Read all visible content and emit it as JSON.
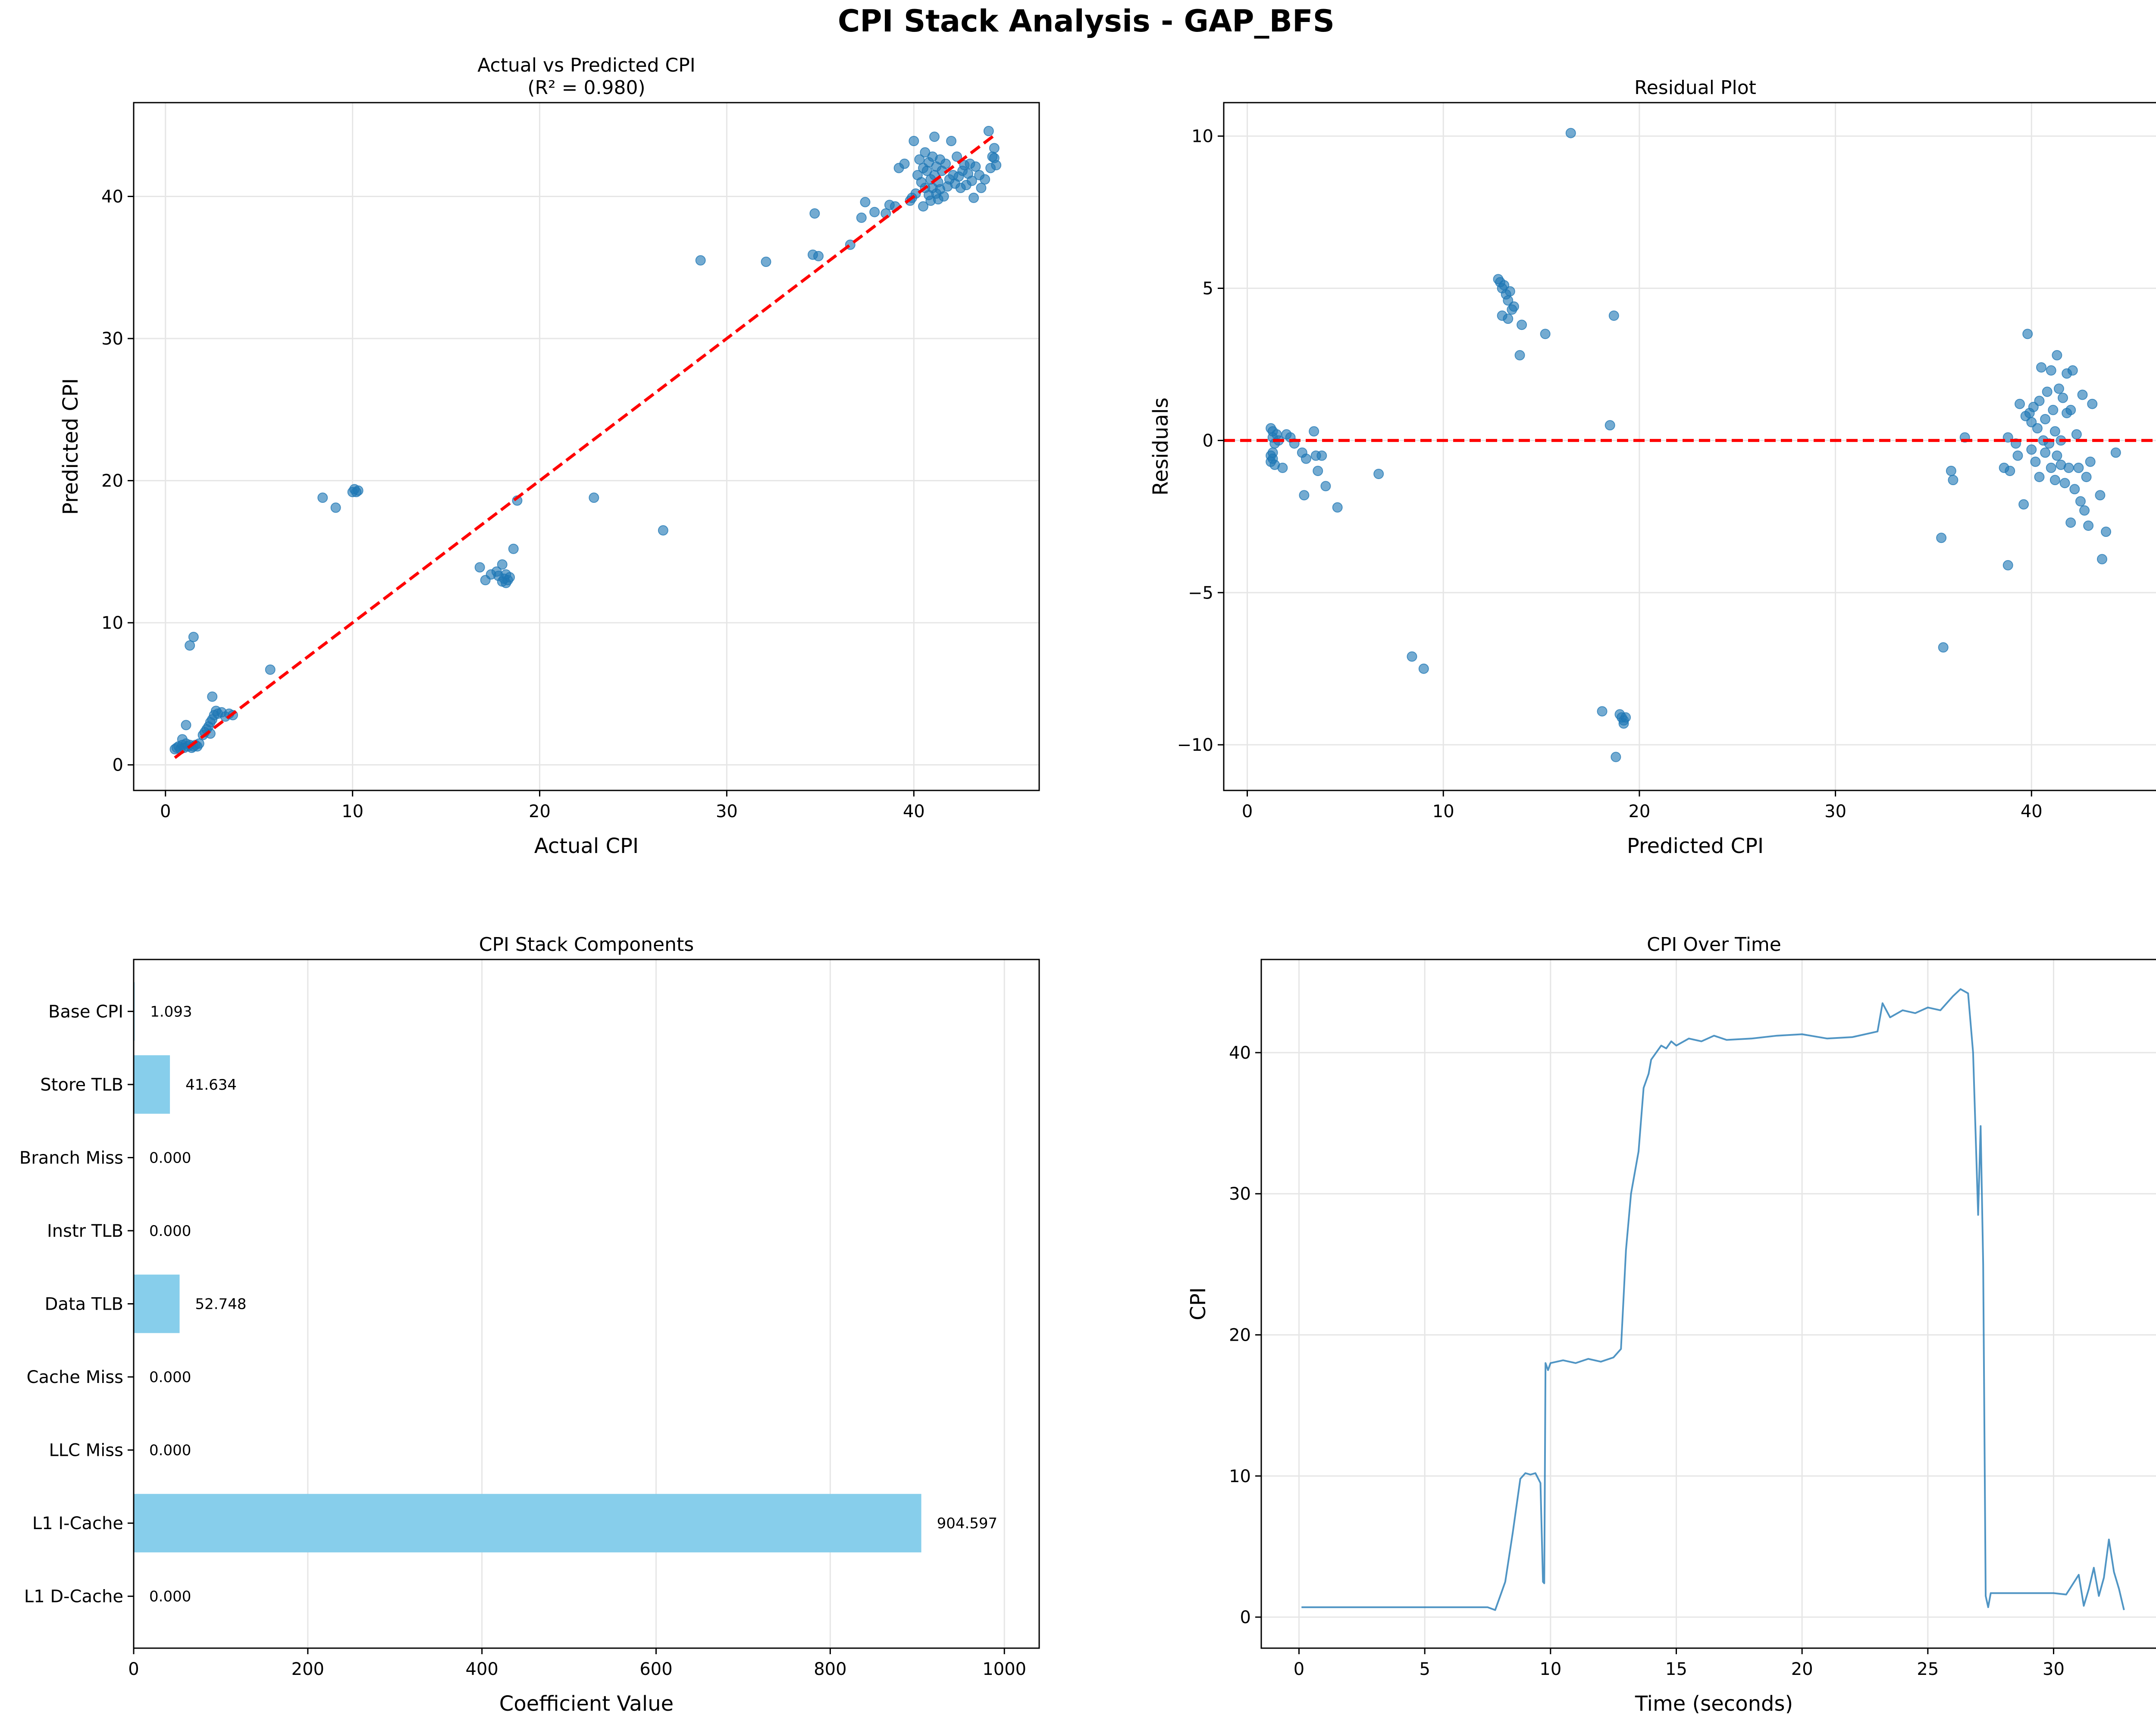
{
  "figure": {
    "suptitle": "CPI Stack Analysis - GAP_BFS"
  },
  "colors": {
    "point": "#1f77b4",
    "ref_line": "#ff0000",
    "bar": "#87ceeb",
    "timeline": "#1f77b4",
    "grid": "#e6e6e6"
  },
  "chart_data": [
    {
      "type": "scatter",
      "title": "Actual vs Predicted CPI",
      "subtitle": "(R² = 0.980)",
      "xlabel": "Actual CPI",
      "ylabel": "Predicted CPI",
      "xlim": [
        -1.7,
        46.7
      ],
      "ylim": [
        -1.8,
        46.6
      ],
      "xticks": [
        "0",
        "10",
        "20",
        "30",
        "40"
      ],
      "yticks": [
        "0",
        "10",
        "20",
        "30",
        "40"
      ],
      "grid": true,
      "reference_line": {
        "x": [
          0.5,
          44.3
        ],
        "y": [
          0.5,
          44.3
        ]
      },
      "points": [
        [
          0.5,
          1.1
        ],
        [
          0.6,
          1.2
        ],
        [
          0.7,
          1.3
        ],
        [
          0.8,
          1.1
        ],
        [
          0.9,
          1.4
        ],
        [
          1.0,
          1.2
        ],
        [
          1.1,
          1.5
        ],
        [
          1.2,
          1.3
        ],
        [
          1.3,
          1.4
        ],
        [
          1.4,
          1.2
        ],
        [
          1.5,
          1.3
        ],
        [
          1.6,
          1.4
        ],
        [
          1.7,
          1.3
        ],
        [
          1.8,
          1.5
        ],
        [
          0.9,
          1.8
        ],
        [
          1.1,
          2.8
        ],
        [
          1.3,
          8.4
        ],
        [
          1.5,
          9.0
        ],
        [
          2.0,
          2.1
        ],
        [
          2.1,
          2.3
        ],
        [
          2.2,
          2.5
        ],
        [
          2.3,
          2.7
        ],
        [
          2.4,
          3.0
        ],
        [
          2.5,
          3.2
        ],
        [
          2.6,
          3.5
        ],
        [
          2.7,
          3.8
        ],
        [
          2.5,
          4.8
        ],
        [
          2.8,
          3.6
        ],
        [
          3.0,
          3.7
        ],
        [
          3.2,
          3.4
        ],
        [
          3.4,
          3.6
        ],
        [
          3.6,
          3.5
        ],
        [
          2.4,
          2.2
        ],
        [
          5.6,
          6.7
        ],
        [
          8.4,
          18.8
        ],
        [
          9.1,
          18.1
        ],
        [
          10.0,
          19.2
        ],
        [
          10.1,
          19.4
        ],
        [
          10.2,
          19.2
        ],
        [
          10.3,
          19.3
        ],
        [
          16.8,
          13.9
        ],
        [
          17.1,
          13.0
        ],
        [
          17.4,
          13.4
        ],
        [
          17.7,
          13.6
        ],
        [
          17.8,
          13.3
        ],
        [
          18.0,
          12.9
        ],
        [
          18.1,
          13.1
        ],
        [
          18.2,
          13.4
        ],
        [
          18.0,
          14.1
        ],
        [
          18.3,
          13.0
        ],
        [
          18.4,
          13.2
        ],
        [
          18.2,
          12.8
        ],
        [
          18.6,
          15.2
        ],
        [
          18.8,
          18.6
        ],
        [
          22.9,
          18.8
        ],
        [
          26.6,
          16.5
        ],
        [
          28.6,
          35.5
        ],
        [
          32.1,
          35.4
        ],
        [
          34.6,
          35.9
        ],
        [
          34.9,
          35.8
        ],
        [
          34.7,
          38.8
        ],
        [
          36.6,
          36.6
        ],
        [
          37.2,
          38.5
        ],
        [
          37.4,
          39.6
        ],
        [
          37.9,
          38.9
        ],
        [
          38.5,
          38.8
        ],
        [
          38.7,
          39.4
        ],
        [
          39.0,
          39.3
        ],
        [
          39.2,
          42.0
        ],
        [
          39.5,
          42.3
        ],
        [
          39.8,
          39.7
        ],
        [
          39.9,
          39.9
        ],
        [
          40.0,
          43.9
        ],
        [
          40.1,
          40.2
        ],
        [
          40.2,
          41.5
        ],
        [
          40.3,
          42.6
        ],
        [
          40.4,
          41.0
        ],
        [
          40.5,
          39.3
        ],
        [
          40.5,
          42.0
        ],
        [
          40.6,
          40.6
        ],
        [
          40.6,
          43.1
        ],
        [
          40.7,
          41.8
        ],
        [
          40.8,
          40.1
        ],
        [
          40.8,
          42.4
        ],
        [
          40.9,
          41.2
        ],
        [
          40.9,
          39.7
        ],
        [
          41.0,
          42.8
        ],
        [
          41.0,
          40.6
        ],
        [
          41.1,
          41.5
        ],
        [
          41.1,
          44.2
        ],
        [
          41.2,
          40.2
        ],
        [
          41.2,
          42.1
        ],
        [
          41.3,
          41.0
        ],
        [
          41.3,
          39.8
        ],
        [
          41.4,
          42.6
        ],
        [
          41.4,
          40.5
        ],
        [
          41.5,
          41.8
        ],
        [
          41.6,
          40.0
        ],
        [
          41.7,
          42.3
        ],
        [
          41.8,
          40.7
        ],
        [
          41.9,
          41.2
        ],
        [
          42.0,
          43.9
        ],
        [
          42.1,
          41.5
        ],
        [
          42.2,
          40.9
        ],
        [
          42.3,
          42.8
        ],
        [
          42.4,
          41.4
        ],
        [
          42.5,
          40.6
        ],
        [
          42.6,
          41.8
        ],
        [
          42.7,
          42.2
        ],
        [
          42.8,
          40.8
        ],
        [
          42.9,
          41.6
        ],
        [
          43.0,
          42.3
        ],
        [
          43.1,
          41.1
        ],
        [
          43.2,
          39.9
        ],
        [
          43.3,
          42.1
        ],
        [
          43.5,
          41.5
        ],
        [
          43.6,
          40.6
        ],
        [
          43.8,
          41.2
        ],
        [
          44.0,
          44.6
        ],
        [
          44.1,
          42.0
        ],
        [
          44.2,
          42.8
        ],
        [
          44.3,
          43.4
        ],
        [
          44.4,
          42.2
        ],
        [
          44.3,
          42.7
        ]
      ]
    },
    {
      "type": "scatter",
      "title": "Residual Plot",
      "xlabel": "Predicted CPI",
      "ylabel": "Residuals",
      "xlim": [
        -1.2,
        46.9
      ],
      "ylim": [
        -11.5,
        11.1
      ],
      "xticks": [
        "0",
        "10",
        "20",
        "30",
        "40"
      ],
      "yticks": [
        "−10",
        "−5",
        "0",
        "5",
        "10"
      ],
      "grid": true,
      "reference_line": {
        "y": 0
      },
      "points": [
        [
          1.2,
          0.4
        ],
        [
          1.3,
          0.3
        ],
        [
          1.3,
          0.1
        ],
        [
          1.2,
          -0.5
        ],
        [
          1.3,
          -0.6
        ],
        [
          1.2,
          -0.7
        ],
        [
          1.4,
          -0.8
        ],
        [
          1.3,
          -0.4
        ],
        [
          1.5,
          0.2
        ],
        [
          1.4,
          -0.1
        ],
        [
          1.6,
          0.0
        ],
        [
          1.8,
          -0.9
        ],
        [
          2.0,
          0.2
        ],
        [
          2.2,
          0.1
        ],
        [
          2.4,
          -0.1
        ],
        [
          2.8,
          -0.4
        ],
        [
          3.0,
          -0.6
        ],
        [
          3.4,
          0.3
        ],
        [
          3.5,
          -0.5
        ],
        [
          3.6,
          -1.0
        ],
        [
          3.8,
          -0.5
        ],
        [
          4.0,
          -1.5
        ],
        [
          2.9,
          -1.8
        ],
        [
          4.6,
          -2.2
        ],
        [
          6.7,
          -1.1
        ],
        [
          8.4,
          -7.1
        ],
        [
          9.0,
          -7.5
        ],
        [
          12.8,
          5.3
        ],
        [
          12.9,
          5.2
        ],
        [
          13.0,
          5.0
        ],
        [
          13.1,
          5.1
        ],
        [
          13.2,
          4.8
        ],
        [
          13.3,
          4.6
        ],
        [
          13.4,
          4.9
        ],
        [
          13.5,
          4.3
        ],
        [
          13.0,
          4.1
        ],
        [
          13.6,
          4.4
        ],
        [
          13.3,
          4.0
        ],
        [
          14.0,
          3.8
        ],
        [
          15.2,
          3.5
        ],
        [
          13.9,
          2.8
        ],
        [
          16.5,
          10.1
        ],
        [
          18.5,
          0.5
        ],
        [
          18.7,
          4.1
        ],
        [
          18.1,
          -8.9
        ],
        [
          18.8,
          -10.4
        ],
        [
          19.0,
          -9.0
        ],
        [
          19.1,
          -9.1
        ],
        [
          19.2,
          -9.2
        ],
        [
          19.3,
          -9.1
        ],
        [
          19.2,
          -9.3
        ],
        [
          35.4,
          -3.2
        ],
        [
          35.5,
          -6.8
        ],
        [
          35.9,
          -1.0
        ],
        [
          36.0,
          -1.3
        ],
        [
          36.6,
          0.1
        ],
        [
          38.6,
          -0.9
        ],
        [
          38.9,
          -1.0
        ],
        [
          38.8,
          0.1
        ],
        [
          38.8,
          -4.1
        ],
        [
          39.2,
          -0.1
        ],
        [
          39.3,
          -0.5
        ],
        [
          39.4,
          1.2
        ],
        [
          39.6,
          -2.1
        ],
        [
          39.7,
          0.8
        ],
        [
          39.8,
          3.5
        ],
        [
          39.9,
          0.9
        ],
        [
          40.0,
          0.6
        ],
        [
          40.0,
          -0.3
        ],
        [
          40.1,
          1.1
        ],
        [
          40.2,
          -0.7
        ],
        [
          40.3,
          0.4
        ],
        [
          40.4,
          1.3
        ],
        [
          40.4,
          -1.2
        ],
        [
          40.5,
          2.4
        ],
        [
          40.6,
          0.0
        ],
        [
          40.7,
          0.7
        ],
        [
          40.7,
          -0.4
        ],
        [
          40.8,
          1.6
        ],
        [
          40.9,
          -0.1
        ],
        [
          41.0,
          2.3
        ],
        [
          41.0,
          -0.9
        ],
        [
          41.1,
          1.0
        ],
        [
          41.2,
          0.3
        ],
        [
          41.2,
          -1.3
        ],
        [
          41.3,
          2.8
        ],
        [
          41.3,
          -0.5
        ],
        [
          41.4,
          1.7
        ],
        [
          41.5,
          0.0
        ],
        [
          41.5,
          -0.8
        ],
        [
          41.6,
          1.4
        ],
        [
          41.7,
          -1.4
        ],
        [
          41.8,
          2.2
        ],
        [
          41.8,
          0.9
        ],
        [
          41.9,
          -0.9
        ],
        [
          42.0,
          1.0
        ],
        [
          42.0,
          -2.7
        ],
        [
          42.1,
          2.3
        ],
        [
          42.2,
          -1.6
        ],
        [
          42.3,
          0.2
        ],
        [
          42.4,
          -0.9
        ],
        [
          42.5,
          -2.0
        ],
        [
          42.6,
          1.5
        ],
        [
          42.7,
          -2.3
        ],
        [
          42.8,
          -1.2
        ],
        [
          42.9,
          -2.8
        ],
        [
          43.0,
          -0.7
        ],
        [
          43.1,
          1.2
        ],
        [
          43.5,
          -1.8
        ],
        [
          43.6,
          -3.9
        ],
        [
          43.8,
          -3.0
        ],
        [
          44.3,
          -0.4
        ]
      ]
    },
    {
      "type": "bar",
      "orientation": "horizontal",
      "title": "CPI Stack Components",
      "xlabel": "Coefficient Value",
      "xlim": [
        0,
        1040
      ],
      "xticks": [
        "0",
        "200",
        "400",
        "600",
        "800",
        "1000"
      ],
      "grid": true,
      "categories": [
        "Base CPI",
        "Store TLB",
        "Branch Miss",
        "Instr TLB",
        "Data TLB",
        "Cache Miss",
        "LLC Miss",
        "L1 I-Cache",
        "L1 D-Cache"
      ],
      "values": [
        1.093,
        41.634,
        0.0,
        0.0,
        52.748,
        0.0,
        0.0,
        904.597,
        0.0
      ],
      "value_labels": [
        "1.093",
        "41.634",
        "0.000",
        "0.000",
        "52.748",
        "0.000",
        "0.000",
        "904.597",
        "0.000"
      ]
    },
    {
      "type": "line",
      "title": "CPI Over Time",
      "xlabel": "Time (seconds)",
      "ylabel": "CPI",
      "xlim": [
        -1.5,
        34.5
      ],
      "ylim": [
        -2.2,
        46.6
      ],
      "xticks": [
        "0",
        "5",
        "10",
        "15",
        "20",
        "25",
        "30"
      ],
      "yticks": [
        "0",
        "10",
        "20",
        "30",
        "40"
      ],
      "grid": true,
      "x": [
        0.1,
        7.5,
        7.8,
        8.0,
        8.2,
        8.5,
        8.8,
        9.0,
        9.2,
        9.4,
        9.6,
        9.7,
        9.75,
        9.8,
        9.9,
        10.0,
        10.5,
        11.0,
        11.5,
        12.0,
        12.5,
        12.8,
        13.0,
        13.2,
        13.5,
        13.7,
        13.9,
        14.0,
        14.2,
        14.4,
        14.6,
        14.8,
        15.0,
        15.5,
        16.0,
        16.5,
        17.0,
        18.0,
        19.0,
        20.0,
        21.0,
        22.0,
        23.0,
        23.2,
        23.5,
        24.0,
        24.5,
        25.0,
        25.5,
        26.0,
        26.3,
        26.6,
        26.8,
        27.0,
        27.1,
        27.2,
        27.3,
        27.4,
        27.5,
        27.8,
        28.0,
        29.0,
        30.0,
        30.5,
        31.0,
        31.2,
        31.4,
        31.6,
        31.8,
        32.0,
        32.2,
        32.4,
        32.6,
        32.8
      ],
      "y": [
        0.7,
        0.7,
        0.5,
        1.5,
        2.5,
        6.0,
        9.8,
        10.2,
        10.1,
        10.2,
        9.5,
        2.5,
        2.4,
        18.0,
        17.5,
        18.0,
        18.2,
        18.0,
        18.3,
        18.1,
        18.4,
        19.0,
        26.0,
        30.0,
        33.0,
        37.5,
        38.5,
        39.5,
        40.0,
        40.5,
        40.3,
        40.8,
        40.5,
        41.0,
        40.8,
        41.2,
        40.9,
        41.0,
        41.2,
        41.3,
        41.0,
        41.1,
        41.5,
        43.5,
        42.5,
        43.0,
        42.8,
        43.2,
        43.0,
        44.0,
        44.5,
        44.2,
        40.0,
        28.5,
        34.8,
        25.0,
        1.5,
        0.7,
        1.7,
        1.7,
        1.7,
        1.7,
        1.7,
        1.6,
        3.0,
        0.8,
        2.0,
        3.5,
        1.5,
        2.8,
        5.5,
        3.2,
        2.0,
        0.5
      ]
    }
  ]
}
